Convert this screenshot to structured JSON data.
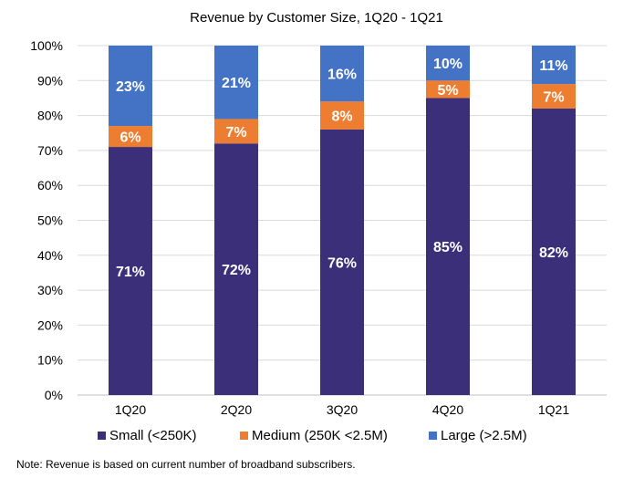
{
  "chart_data": {
    "type": "bar",
    "stacked": true,
    "title": "Revenue by Customer Size, 1Q20 - 1Q21",
    "categories": [
      "1Q20",
      "2Q20",
      "3Q20",
      "4Q20",
      "1Q21"
    ],
    "series": [
      {
        "name": "Small (<250K)",
        "color": "#3b2f7a",
        "values": [
          71,
          72,
          76,
          85,
          82
        ],
        "labels": [
          "71%",
          "72%",
          "76%",
          "85%",
          "82%"
        ]
      },
      {
        "name": "Medium (250K <2.5M)",
        "color": "#ed7d31",
        "values": [
          6,
          7,
          8,
          5,
          7
        ],
        "labels": [
          "6%",
          "7%",
          "8%",
          "5%",
          "7%"
        ]
      },
      {
        "name": "Large (>2.5M)",
        "color": "#4472c4",
        "values": [
          23,
          21,
          16,
          10,
          11
        ],
        "labels": [
          "23%",
          "21%",
          "16%",
          "10%",
          "11%"
        ]
      }
    ],
    "ylim": [
      0,
      100
    ],
    "yticks": [
      "0%",
      "10%",
      "20%",
      "30%",
      "40%",
      "50%",
      "60%",
      "70%",
      "80%",
      "90%",
      "100%"
    ],
    "grid": true,
    "legend": "bottom"
  },
  "note": "Note: Revenue is based on current number of broadband subscribers."
}
